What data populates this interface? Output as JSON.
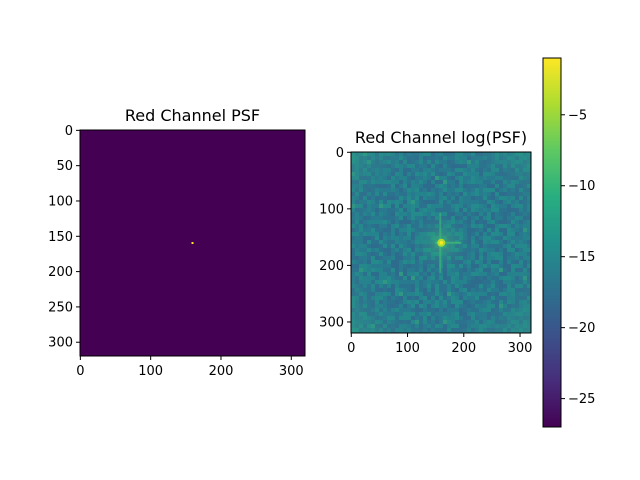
{
  "chart_data": [
    {
      "type": "heatmap",
      "title": "Red Channel PSF",
      "xlabel": "",
      "ylabel": "",
      "xlim": [
        0,
        319
      ],
      "ylim": [
        319,
        0
      ],
      "x_ticks": [
        0,
        100,
        200,
        300
      ],
      "y_ticks": [
        0,
        50,
        100,
        150,
        200,
        250,
        300
      ],
      "colormap": "viridis",
      "background_value": 0,
      "peak": {
        "x": 160,
        "y": 160,
        "value": 1
      },
      "grid": false
    },
    {
      "type": "heatmap",
      "title": "Red Channel log(PSF)",
      "xlabel": "",
      "ylabel": "",
      "xlim": [
        0,
        319
      ],
      "ylim": [
        319,
        0
      ],
      "x_ticks": [
        0,
        100,
        200,
        300
      ],
      "y_ticks": [
        0,
        100,
        200,
        300
      ],
      "colormap": "viridis",
      "peak": {
        "x": 160,
        "y": 160
      },
      "grid": false,
      "colorbar": {
        "range": [
          -27,
          -1
        ],
        "ticks": [
          -5,
          -10,
          -15,
          -20,
          -25
        ],
        "tick_labels": [
          "−5",
          "−10",
          "−15",
          "−20",
          "−25"
        ]
      }
    }
  ]
}
